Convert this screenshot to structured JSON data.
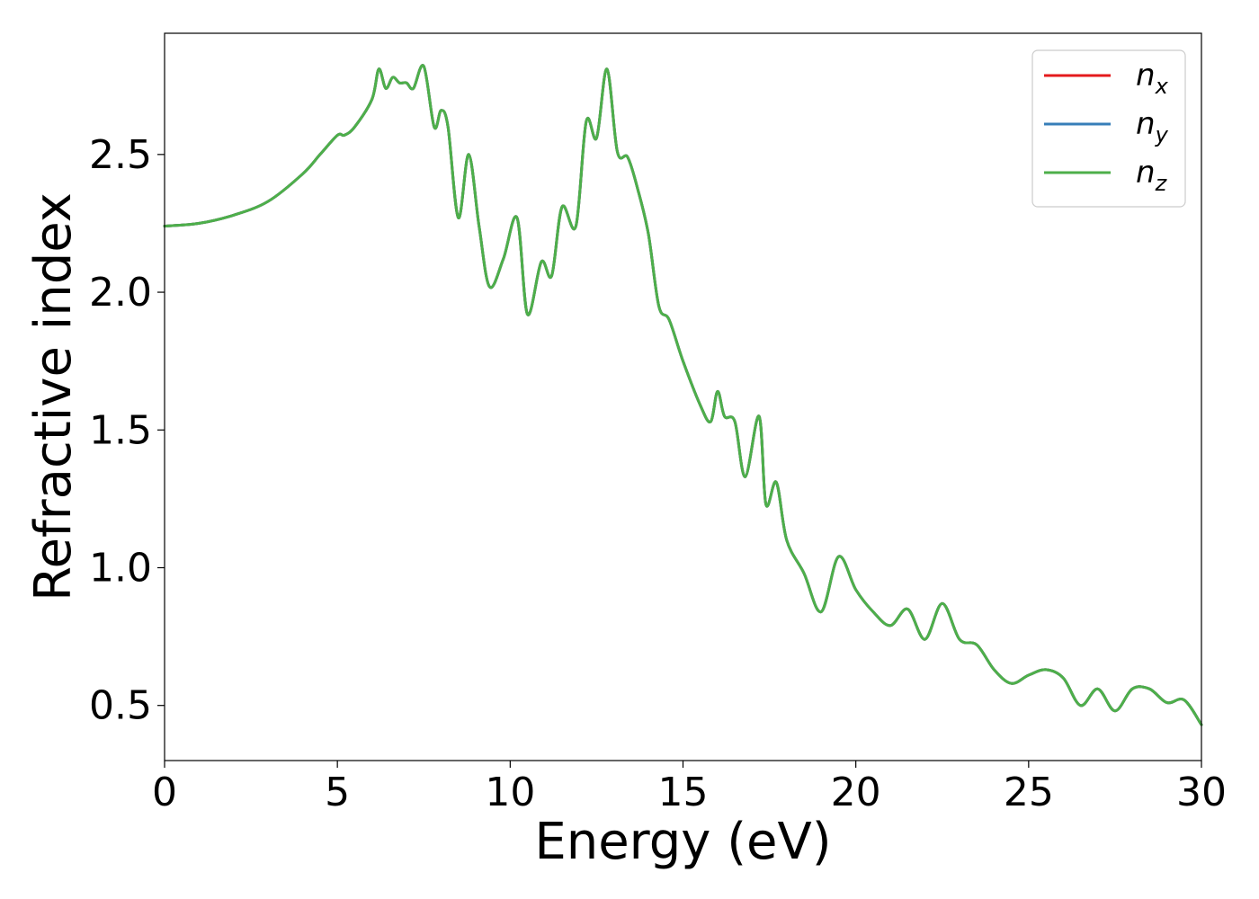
{
  "chart_data": {
    "type": "line",
    "xlabel": "Energy (eV)",
    "ylabel": "Refractive index",
    "xlim": [
      0,
      30
    ],
    "ylim": [
      0.3,
      2.94
    ],
    "xticks": [
      0,
      5,
      10,
      15,
      20,
      25,
      30
    ],
    "xtick_labels": [
      "0",
      "5",
      "10",
      "15",
      "20",
      "25",
      "30"
    ],
    "yticks": [
      0.5,
      1.0,
      1.5,
      2.0,
      2.5
    ],
    "ytick_labels": [
      "0.5",
      "1.0",
      "1.5",
      "2.0",
      "2.5"
    ],
    "grid": false,
    "legend": {
      "position": "top-right",
      "entries": [
        {
          "base": "n",
          "sub": "x",
          "color": "#e41a1c"
        },
        {
          "base": "n",
          "sub": "y",
          "color": "#377eb8"
        },
        {
          "base": "n",
          "sub": "z",
          "color": "#4daf4a"
        }
      ]
    },
    "x": [
      0,
      1,
      2,
      3,
      4,
      4.5,
      5,
      5.2,
      5.5,
      6,
      6.2,
      6.4,
      6.6,
      6.8,
      7,
      7.2,
      7.5,
      7.8,
      8,
      8.2,
      8.5,
      8.8,
      9.1,
      9.4,
      9.8,
      10.2,
      10.5,
      10.9,
      11.2,
      11.5,
      11.9,
      12.2,
      12.5,
      12.8,
      13.1,
      13.4,
      13.7,
      14,
      14.3,
      14.6,
      15,
      15.5,
      15.8,
      16,
      16.2,
      16.5,
      16.8,
      17.2,
      17.4,
      17.7,
      18,
      18.5,
      19,
      19.5,
      20,
      20.5,
      21,
      21.5,
      22,
      22.5,
      23,
      23.5,
      24,
      24.5,
      25,
      25.5,
      26,
      26.5,
      27,
      27.5,
      28,
      28.5,
      29,
      29.5,
      30
    ],
    "series": [
      {
        "name": "n_x",
        "color": "#e41a1c",
        "values": [
          2.24,
          2.25,
          2.28,
          2.33,
          2.43,
          2.5,
          2.57,
          2.57,
          2.6,
          2.7,
          2.81,
          2.74,
          2.78,
          2.76,
          2.76,
          2.74,
          2.82,
          2.6,
          2.66,
          2.6,
          2.27,
          2.5,
          2.24,
          2.02,
          2.12,
          2.27,
          1.92,
          2.11,
          2.06,
          2.31,
          2.24,
          2.62,
          2.56,
          2.81,
          2.51,
          2.49,
          2.37,
          2.21,
          1.95,
          1.9,
          1.75,
          1.59,
          1.53,
          1.64,
          1.55,
          1.53,
          1.33,
          1.55,
          1.23,
          1.31,
          1.1,
          0.98,
          0.84,
          1.04,
          0.92,
          0.84,
          0.79,
          0.85,
          0.74,
          0.87,
          0.74,
          0.72,
          0.63,
          0.58,
          0.61,
          0.63,
          0.6,
          0.5,
          0.56,
          0.48,
          0.56,
          0.56,
          0.51,
          0.52,
          0.43
        ]
      },
      {
        "name": "n_y",
        "color": "#377eb8",
        "values": [
          2.24,
          2.25,
          2.28,
          2.33,
          2.43,
          2.5,
          2.57,
          2.57,
          2.6,
          2.7,
          2.81,
          2.74,
          2.78,
          2.76,
          2.76,
          2.74,
          2.82,
          2.6,
          2.66,
          2.6,
          2.27,
          2.5,
          2.24,
          2.02,
          2.12,
          2.27,
          1.92,
          2.11,
          2.06,
          2.31,
          2.24,
          2.62,
          2.56,
          2.81,
          2.51,
          2.49,
          2.37,
          2.21,
          1.95,
          1.9,
          1.75,
          1.59,
          1.53,
          1.64,
          1.55,
          1.53,
          1.33,
          1.55,
          1.23,
          1.31,
          1.1,
          0.98,
          0.84,
          1.04,
          0.92,
          0.84,
          0.79,
          0.85,
          0.74,
          0.87,
          0.74,
          0.72,
          0.63,
          0.58,
          0.61,
          0.63,
          0.6,
          0.5,
          0.56,
          0.48,
          0.56,
          0.56,
          0.51,
          0.52,
          0.43
        ]
      },
      {
        "name": "n_z",
        "color": "#4daf4a",
        "values": [
          2.24,
          2.25,
          2.28,
          2.33,
          2.43,
          2.5,
          2.57,
          2.57,
          2.6,
          2.7,
          2.81,
          2.74,
          2.78,
          2.76,
          2.76,
          2.74,
          2.82,
          2.6,
          2.66,
          2.6,
          2.27,
          2.5,
          2.24,
          2.02,
          2.12,
          2.27,
          1.92,
          2.11,
          2.06,
          2.31,
          2.24,
          2.62,
          2.56,
          2.81,
          2.51,
          2.49,
          2.37,
          2.21,
          1.95,
          1.9,
          1.75,
          1.59,
          1.53,
          1.64,
          1.55,
          1.53,
          1.33,
          1.55,
          1.23,
          1.31,
          1.1,
          0.98,
          0.84,
          1.04,
          0.92,
          0.84,
          0.79,
          0.85,
          0.74,
          0.87,
          0.74,
          0.72,
          0.63,
          0.58,
          0.61,
          0.63,
          0.6,
          0.5,
          0.56,
          0.48,
          0.56,
          0.56,
          0.51,
          0.52,
          0.43
        ]
      }
    ]
  }
}
